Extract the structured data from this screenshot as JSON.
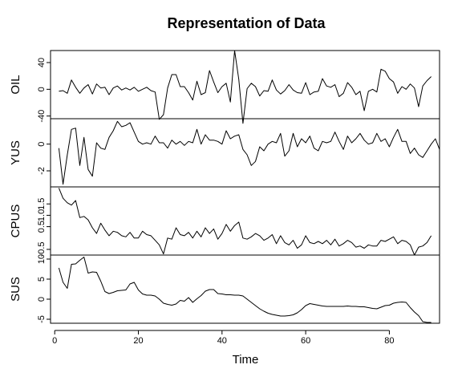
{
  "chart_data": {
    "type": "line",
    "title": "Representation of Data",
    "xlabel": "Time",
    "xlim": [
      -1,
      92
    ],
    "xticks": [
      0,
      20,
      40,
      60,
      80
    ],
    "x_start": 1,
    "panels": [
      {
        "name": "OIL",
        "ylim": [
          -44,
          58
        ],
        "yticks": [
          -40,
          0,
          40
        ],
        "ytick_labels": [
          "-40",
          "0",
          "40"
        ],
        "values": [
          -3,
          -2,
          -6,
          14,
          3,
          -6,
          2,
          7,
          -7,
          8,
          2,
          3,
          -8,
          2,
          5,
          -1,
          2,
          -1,
          3,
          -3,
          0,
          3,
          -2,
          -4,
          -45,
          -38,
          2,
          22,
          22,
          4,
          4,
          -5,
          -16,
          12,
          -8,
          -5,
          28,
          11,
          -5,
          4,
          9,
          -19,
          58,
          15,
          -51,
          1,
          9,
          4,
          -10,
          -2,
          -3,
          14,
          -1,
          -7,
          -2,
          7,
          -1,
          -5,
          -6,
          10,
          -8,
          -4,
          -3,
          16,
          5,
          3,
          7,
          -11,
          -6,
          10,
          3,
          -8,
          -3,
          -32,
          -3,
          0,
          -4,
          30,
          27,
          16,
          11,
          -6,
          4,
          0,
          8,
          2,
          -26,
          5,
          13,
          19
        ],
        "color": "#000000"
      },
      {
        "name": "YUS",
        "ylim": [
          -3.2,
          1.9
        ],
        "yticks": [
          -2,
          0
        ],
        "ytick_labels": [
          "-2",
          "0"
        ],
        "values": [
          -0.3,
          -3.0,
          -0.8,
          1.1,
          1.2,
          -1.6,
          0.5,
          -1.9,
          -2.4,
          0.1,
          -0.3,
          -0.4,
          0.5,
          1.0,
          1.7,
          1.3,
          1.4,
          1.6,
          0.9,
          0.2,
          0.0,
          0.1,
          0.0,
          0.6,
          0.1,
          0.1,
          -0.3,
          0.3,
          0.0,
          0.2,
          -0.1,
          0.2,
          0.1,
          1.1,
          0.0,
          0.7,
          0.3,
          0.3,
          0.2,
          0.0,
          1.0,
          0.4,
          0.6,
          0.7,
          -0.4,
          -0.8,
          -1.6,
          -1.3,
          -0.2,
          -0.5,
          0.0,
          0.2,
          0.1,
          0.8,
          -0.9,
          -0.5,
          0.8,
          -0.2,
          0.4,
          0.1,
          0.6,
          -0.3,
          -0.5,
          0.2,
          0.1,
          0.2,
          0.9,
          0.2,
          -0.4,
          0.6,
          0.1,
          0.4,
          0.8,
          0.3,
          0.0,
          0.1,
          0.8,
          0.2,
          0.4,
          -0.2,
          0.5,
          1.1,
          0.2,
          0.2,
          -0.7,
          -0.3,
          -0.8,
          -1.0,
          -0.5,
          0.0,
          0.4,
          -0.4
        ],
        "color": "#000000"
      },
      {
        "name": "CPUS",
        "ylim": [
          -0.75,
          2.25
        ],
        "yticks": [
          -0.5,
          0.5,
          1.0,
          1.5
        ],
        "ytick_labels": [
          "-0.5",
          "0.5",
          "1.0",
          "1.5"
        ],
        "values": [
          2.2,
          1.75,
          1.55,
          1.45,
          1.65,
          0.9,
          0.95,
          0.8,
          0.45,
          0.2,
          0.65,
          0.35,
          0.1,
          0.3,
          0.25,
          0.1,
          0.05,
          0.25,
          0.0,
          0.0,
          0.3,
          0.15,
          0.1,
          -0.1,
          -0.3,
          -0.7,
          0.0,
          -0.05,
          0.45,
          0.15,
          0.1,
          0.25,
          0.0,
          0.3,
          0.05,
          0.45,
          0.2,
          0.4,
          -0.05,
          0.2,
          0.6,
          0.3,
          0.55,
          0.7,
          0.0,
          -0.05,
          0.05,
          0.2,
          0.1,
          -0.1,
          0.0,
          0.15,
          -0.25,
          0.1,
          -0.2,
          -0.3,
          -0.1,
          -0.45,
          -0.3,
          0.1,
          -0.2,
          -0.25,
          -0.15,
          -0.25,
          -0.1,
          -0.3,
          -0.05,
          -0.35,
          -0.25,
          -0.1,
          -0.2,
          -0.4,
          -0.35,
          -0.45,
          -0.3,
          -0.35,
          -0.35,
          -0.1,
          -0.15,
          -0.05,
          0.05,
          -0.25,
          -0.1,
          -0.15,
          -0.3,
          -0.75,
          -0.4,
          -0.35,
          -0.2,
          0.1
        ],
        "color": "#000000"
      },
      {
        "name": "SUS",
        "ylim": [
          -6,
          11
        ],
        "yticks": [
          -5,
          0,
          5,
          10
        ],
        "ytick_labels": [
          "-5",
          "0",
          "5",
          "10"
        ],
        "values": [
          7.8,
          4.2,
          2.7,
          8.7,
          8.8,
          9.7,
          10.5,
          6.5,
          6.8,
          6.7,
          4.5,
          1.9,
          1.4,
          1.7,
          2.1,
          2.2,
          2.3,
          3.8,
          4.2,
          2.3,
          1.3,
          1.0,
          1.0,
          0.8,
          0.0,
          -1.0,
          -1.3,
          -1.5,
          -1.2,
          -0.3,
          -0.5,
          0.4,
          -0.8,
          0.1,
          0.9,
          2.0,
          2.4,
          2.4,
          1.4,
          1.3,
          1.1,
          1.1,
          1.0,
          1.0,
          0.8,
          0.0,
          -0.8,
          -1.6,
          -2.4,
          -3.0,
          -3.5,
          -3.8,
          -4.0,
          -4.2,
          -4.2,
          -4.1,
          -3.9,
          -3.4,
          -2.6,
          -1.6,
          -1.1,
          -1.3,
          -1.5,
          -1.7,
          -1.8,
          -1.8,
          -1.8,
          -1.8,
          -1.8,
          -1.7,
          -1.8,
          -1.8,
          -1.9,
          -1.9,
          -2.1,
          -2.3,
          -2.4,
          -2.0,
          -1.6,
          -1.5,
          -1.0,
          -0.8,
          -0.7,
          -0.8,
          -2.1,
          -3.2,
          -4.1,
          -5.6,
          -5.8,
          -5.8
        ],
        "color": "#000000"
      }
    ]
  }
}
